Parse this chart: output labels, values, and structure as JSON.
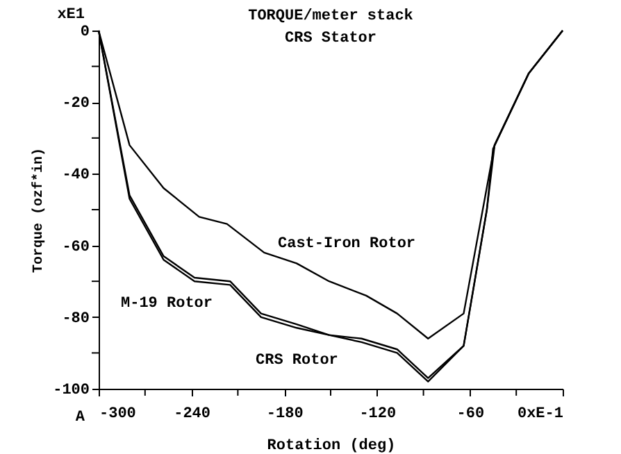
{
  "chart_data": {
    "type": "line",
    "title": "TORQUE/meter stack",
    "subtitle": "CRS Stator",
    "xlabel": "Rotation (deg)",
    "ylabel": "Torque (ozf*in)",
    "xlim": [
      -300,
      0
    ],
    "ylim": [
      -100,
      0
    ],
    "xticks": [
      -300,
      {
        "value": -270,
        "label": null
      },
      -240,
      {
        "value": -210,
        "label": null
      },
      -180,
      {
        "value": -150,
        "label": null
      },
      -120,
      {
        "value": -90,
        "label": null
      },
      -60,
      {
        "value": -30,
        "label": null
      },
      {
        "value": 0,
        "label": "0xE-1"
      }
    ],
    "yticks": [
      -100,
      {
        "value": -90,
        "label": null
      },
      -80,
      {
        "value": -70,
        "label": null
      },
      -60,
      {
        "value": -50,
        "label": null
      },
      -40,
      {
        "value": -30,
        "label": null
      },
      -20,
      {
        "value": -10,
        "label": null
      },
      0
    ],
    "grid": false,
    "legend": false,
    "marker": "none",
    "line_style": "solid",
    "series": [
      {
        "color": "#000000",
        "x": [
          -300,
          -280,
          -258,
          -235,
          -217,
          -193,
          -172,
          -151,
          -127,
          -107,
          -87,
          -64,
          -44,
          -22,
          0
        ],
        "values": [
          0,
          -32,
          -44,
          -52,
          -54,
          -62,
          -65,
          -70,
          -74,
          -79,
          -86,
          -79,
          -32,
          -12,
          0
        ]
      },
      {
        "color": "#000000",
        "x": [
          -300,
          -280,
          -258,
          -238,
          -215,
          -195,
          -172,
          -151,
          -130,
          -107,
          -87,
          -64,
          -49,
          -44,
          -22,
          0
        ],
        "values": [
          0,
          -46,
          -63,
          -69,
          -70,
          -79,
          -82,
          -85,
          -86,
          -89,
          -97,
          -88,
          -50,
          -32,
          -12,
          0
        ]
      },
      {
        "color": "#000000",
        "x": [
          -300,
          -280,
          -258,
          -238,
          -215,
          -195,
          -172,
          -151,
          -130,
          -107,
          -87,
          -64,
          -49,
          -45,
          -22,
          0
        ],
        "values": [
          0,
          -47,
          -64,
          -70,
          -71,
          -80,
          -83,
          -85,
          -87,
          -90,
          -98,
          -88,
          -50,
          -33,
          -12,
          0
        ]
      }
    ],
    "annotations": [
      "Cast-Iron Rotor",
      "M-19 Rotor",
      "CRS Rotor",
      "xE1",
      "A"
    ]
  }
}
